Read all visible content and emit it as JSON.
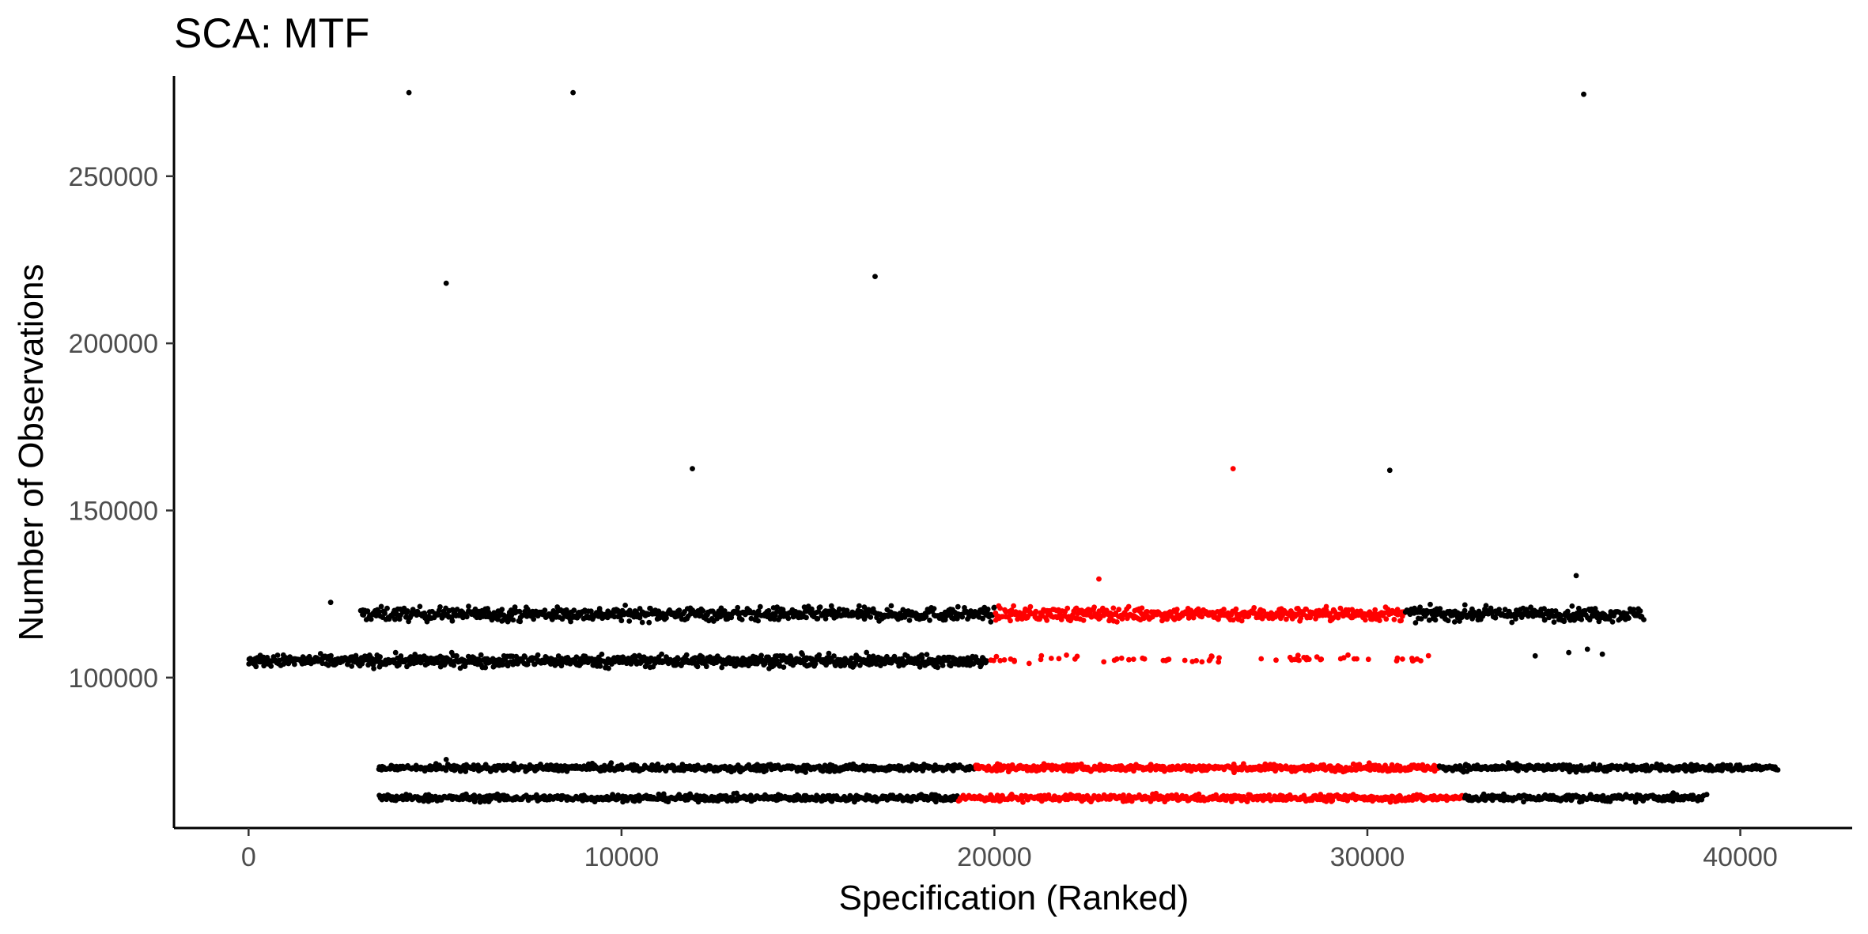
{
  "chart_data": {
    "type": "scatter",
    "title": "SCA: MTF",
    "xlabel": "Specification (Ranked)",
    "ylabel": "Number of Observations",
    "xlim": [
      -2000,
      43000
    ],
    "ylim": [
      55000,
      280000
    ],
    "x_ticks": [
      0,
      10000,
      20000,
      30000,
      40000
    ],
    "x_tick_labels": [
      "0",
      "10000",
      "20000",
      "30000",
      "40000"
    ],
    "y_ticks": [
      100000,
      150000,
      200000,
      250000
    ],
    "y_tick_labels": [
      "100000",
      "150000",
      "200000",
      "250000"
    ],
    "grid": false,
    "legend": "none",
    "colors": {
      "default": "#000000",
      "highlight": "#ff0000"
    },
    "bands": [
      {
        "x_start": 3000,
        "x_end": 37400,
        "y_center": 119000,
        "y_spread": 1800,
        "highlight_range": [
          20000,
          31000
        ],
        "count": 1400
      },
      {
        "x_start": 0,
        "x_end": 19800,
        "y_center": 105000,
        "y_spread": 1600,
        "highlight_range": [],
        "count": 900
      },
      {
        "x_start": 19800,
        "x_end": 32000,
        "y_center": 105500,
        "y_spread": 1000,
        "highlight_range": [
          19800,
          32000
        ],
        "count": 70,
        "sparse": true
      },
      {
        "x_start": 3500,
        "x_end": 41000,
        "y_center": 73000,
        "y_spread": 900,
        "highlight_range": [
          19500,
          31900
        ],
        "count": 1500
      },
      {
        "x_start": 3500,
        "x_end": 39000,
        "y_center": 64000,
        "y_spread": 900,
        "highlight_range": [
          19000,
          32600
        ],
        "count": 1400
      }
    ],
    "outliers": [
      {
        "x": 4300,
        "y": 275000,
        "highlight": false
      },
      {
        "x": 8700,
        "y": 275000,
        "highlight": false
      },
      {
        "x": 35800,
        "y": 274500,
        "highlight": false
      },
      {
        "x": 5300,
        "y": 218000,
        "highlight": false
      },
      {
        "x": 16800,
        "y": 220000,
        "highlight": false
      },
      {
        "x": 11900,
        "y": 162500,
        "highlight": false
      },
      {
        "x": 26400,
        "y": 162500,
        "highlight": true
      },
      {
        "x": 30600,
        "y": 162000,
        "highlight": false
      },
      {
        "x": 22800,
        "y": 129500,
        "highlight": true
      },
      {
        "x": 35600,
        "y": 130500,
        "highlight": false
      },
      {
        "x": 2200,
        "y": 122500,
        "highlight": false
      },
      {
        "x": 5300,
        "y": 75500,
        "highlight": false
      },
      {
        "x": 34500,
        "y": 106500,
        "highlight": false
      },
      {
        "x": 35400,
        "y": 107500,
        "highlight": false
      },
      {
        "x": 35900,
        "y": 108500,
        "highlight": false
      },
      {
        "x": 36300,
        "y": 107000,
        "highlight": false
      },
      {
        "x": 38200,
        "y": 65500,
        "highlight": false
      },
      {
        "x": 39100,
        "y": 65000,
        "highlight": false
      }
    ]
  }
}
